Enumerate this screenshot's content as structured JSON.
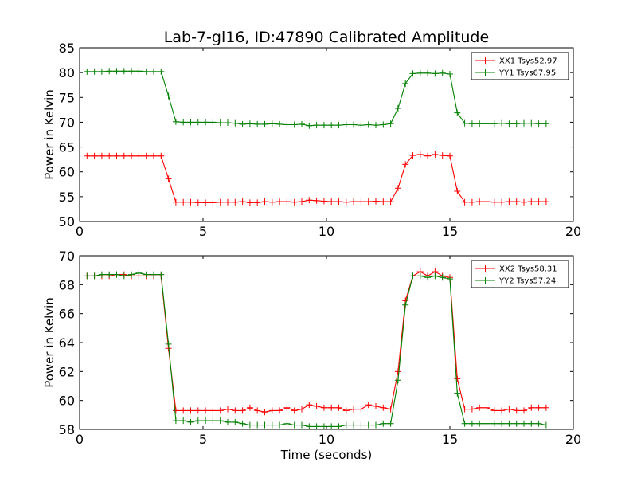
{
  "chart_data": [
    {
      "type": "line",
      "title": "Lab-7-gl16, ID:47890 Calibrated Amplitude",
      "xlabel": "",
      "ylabel": "Power in Kelvin",
      "xlim": [
        0,
        20
      ],
      "ylim": [
        50,
        85
      ],
      "xticks": [
        "0",
        "5",
        "10",
        "15",
        "20"
      ],
      "yticks": [
        "50",
        "55",
        "60",
        "65",
        "70",
        "75",
        "80",
        "85"
      ],
      "legend_position": "top-right",
      "grid": false,
      "x": [
        0.3,
        0.6,
        0.9,
        1.2,
        1.5,
        1.8,
        2.1,
        2.4,
        2.7,
        3.0,
        3.3,
        3.6,
        3.9,
        4.2,
        4.5,
        4.8,
        5.1,
        5.4,
        5.7,
        6.0,
        6.3,
        6.6,
        6.9,
        7.2,
        7.5,
        7.8,
        8.1,
        8.4,
        8.7,
        9.0,
        9.3,
        9.6,
        9.9,
        10.2,
        10.5,
        10.8,
        11.1,
        11.4,
        11.7,
        12.0,
        12.3,
        12.6,
        12.9,
        13.2,
        13.5,
        13.8,
        14.1,
        14.4,
        14.7,
        15.0,
        15.3,
        15.6,
        15.9,
        16.2,
        16.5,
        16.8,
        17.1,
        17.4,
        17.7,
        18.0,
        18.3,
        18.6,
        18.9
      ],
      "series": [
        {
          "name": "XX1 Tsys52.97",
          "color": "#ff0000",
          "values": [
            63.2,
            63.2,
            63.2,
            63.2,
            63.2,
            63.2,
            63.2,
            63.2,
            63.2,
            63.2,
            63.2,
            58.6,
            53.9,
            53.9,
            53.9,
            53.8,
            53.8,
            53.8,
            53.9,
            53.9,
            53.9,
            54.0,
            53.8,
            53.8,
            54.0,
            53.9,
            54.0,
            54.0,
            53.9,
            54.0,
            54.3,
            54.2,
            54.1,
            54.0,
            54.0,
            53.9,
            54.0,
            54.0,
            54.0,
            54.1,
            54.0,
            54.0,
            56.7,
            61.5,
            63.3,
            63.5,
            63.2,
            63.5,
            63.3,
            63.2,
            56.1,
            53.9,
            53.9,
            54.0,
            54.0,
            53.9,
            53.9,
            54.0,
            54.0,
            53.9,
            54.0,
            54.0,
            54.0
          ]
        },
        {
          "name": "YY1 Tsys67.95",
          "color": "#008000",
          "values": [
            80.2,
            80.2,
            80.2,
            80.3,
            80.3,
            80.3,
            80.3,
            80.3,
            80.2,
            80.2,
            80.2,
            75.3,
            70.1,
            70.0,
            70.0,
            70.0,
            70.0,
            70.0,
            69.9,
            69.9,
            69.8,
            69.6,
            69.7,
            69.6,
            69.6,
            69.7,
            69.6,
            69.5,
            69.5,
            69.6,
            69.3,
            69.4,
            69.4,
            69.4,
            69.4,
            69.5,
            69.5,
            69.4,
            69.5,
            69.4,
            69.5,
            69.7,
            72.8,
            77.8,
            79.8,
            79.9,
            79.9,
            79.8,
            79.9,
            79.7,
            71.9,
            69.8,
            69.7,
            69.7,
            69.7,
            69.7,
            69.8,
            69.7,
            69.7,
            69.8,
            69.8,
            69.7,
            69.7
          ]
        }
      ]
    },
    {
      "type": "line",
      "title": "",
      "xlabel": "Time (seconds)",
      "ylabel": "Power in Kelvin",
      "xlim": [
        0,
        20
      ],
      "ylim": [
        58,
        70
      ],
      "xticks": [
        "0",
        "5",
        "10",
        "15",
        "20"
      ],
      "yticks": [
        "58",
        "60",
        "62",
        "64",
        "66",
        "68",
        "70"
      ],
      "legend_position": "top-right",
      "grid": false,
      "x": [
        0.3,
        0.6,
        0.9,
        1.2,
        1.5,
        1.8,
        2.1,
        2.4,
        2.7,
        3.0,
        3.3,
        3.6,
        3.9,
        4.2,
        4.5,
        4.8,
        5.1,
        5.4,
        5.7,
        6.0,
        6.3,
        6.6,
        6.9,
        7.2,
        7.5,
        7.8,
        8.1,
        8.4,
        8.7,
        9.0,
        9.3,
        9.6,
        9.9,
        10.2,
        10.5,
        10.8,
        11.1,
        11.4,
        11.7,
        12.0,
        12.3,
        12.6,
        12.9,
        13.2,
        13.5,
        13.8,
        14.1,
        14.4,
        14.7,
        15.0,
        15.3,
        15.6,
        15.9,
        16.2,
        16.5,
        16.8,
        17.1,
        17.4,
        17.7,
        18.0,
        18.3,
        18.6,
        18.9
      ],
      "series": [
        {
          "name": "XX2 Tsys58.31",
          "color": "#ff0000",
          "values": [
            68.6,
            68.6,
            68.6,
            68.6,
            68.7,
            68.7,
            68.6,
            68.6,
            68.6,
            68.6,
            68.6,
            63.6,
            59.3,
            59.3,
            59.3,
            59.3,
            59.3,
            59.3,
            59.3,
            59.4,
            59.3,
            59.3,
            59.5,
            59.3,
            59.2,
            59.3,
            59.3,
            59.5,
            59.3,
            59.4,
            59.7,
            59.6,
            59.5,
            59.5,
            59.5,
            59.3,
            59.4,
            59.4,
            59.7,
            59.6,
            59.5,
            59.4,
            62.0,
            66.9,
            68.6,
            68.9,
            68.6,
            68.9,
            68.6,
            68.5,
            61.5,
            59.4,
            59.4,
            59.5,
            59.5,
            59.3,
            59.3,
            59.4,
            59.3,
            59.3,
            59.5,
            59.5,
            59.5
          ]
        },
        {
          "name": "YY2 Tsys57.24",
          "color": "#008000",
          "values": [
            68.6,
            68.6,
            68.7,
            68.7,
            68.7,
            68.6,
            68.7,
            68.8,
            68.7,
            68.7,
            68.7,
            63.9,
            58.6,
            58.6,
            58.5,
            58.6,
            58.6,
            58.6,
            58.6,
            58.5,
            58.5,
            58.4,
            58.3,
            58.3,
            58.3,
            58.3,
            58.3,
            58.4,
            58.3,
            58.3,
            58.2,
            58.2,
            58.2,
            58.2,
            58.2,
            58.3,
            58.3,
            58.3,
            58.3,
            58.3,
            58.4,
            58.4,
            61.4,
            66.6,
            68.6,
            68.6,
            68.5,
            68.6,
            68.5,
            68.4,
            60.5,
            58.4,
            58.4,
            58.4,
            58.4,
            58.4,
            58.4,
            58.4,
            58.4,
            58.4,
            58.4,
            58.4,
            58.3
          ]
        }
      ]
    }
  ]
}
